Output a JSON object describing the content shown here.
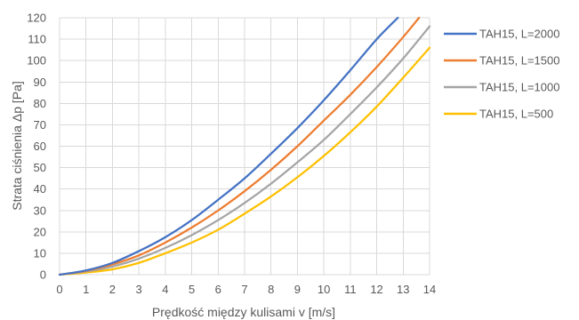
{
  "chart_data": {
    "type": "line",
    "title": "",
    "xlabel": "Prędkość między kulisami v [m/s]",
    "ylabel": "Strata ciśnienia Δp [Pa]",
    "xlim": [
      0,
      14
    ],
    "ylim": [
      0,
      120
    ],
    "x_ticks": [
      "0",
      "1",
      "2",
      "3",
      "4",
      "5",
      "6",
      "7",
      "8",
      "9",
      "10",
      "11",
      "12",
      "13",
      "14"
    ],
    "y_ticks": [
      "0",
      "10",
      "20",
      "30",
      "40",
      "50",
      "60",
      "70",
      "80",
      "90",
      "100",
      "110",
      "120"
    ],
    "grid": true,
    "legend_position": "right",
    "series": [
      {
        "name": "TAH15, L=2000",
        "color": "#4472c4",
        "x": [
          0,
          1,
          2,
          3,
          4,
          5,
          6,
          7,
          8,
          9,
          10,
          11,
          12,
          12.8
        ],
        "y": [
          0,
          2,
          5.5,
          11,
          17.5,
          25.5,
          35,
          45,
          56.5,
          68.5,
          81.5,
          95.5,
          110,
          120
        ]
      },
      {
        "name": "TAH15, L=1500",
        "color": "#ed7d31",
        "x": [
          0,
          1,
          2,
          3,
          4,
          5,
          6,
          7,
          8,
          9,
          10,
          11,
          12,
          13,
          13.6
        ],
        "y": [
          0,
          1.8,
          4.8,
          9,
          15,
          22,
          30,
          39,
          49,
          60,
          72,
          84,
          97,
          111,
          120
        ]
      },
      {
        "name": "TAH15, L=1000",
        "color": "#a5a5a5",
        "x": [
          0,
          1,
          2,
          3,
          4,
          5,
          6,
          7,
          8,
          9,
          10,
          11,
          12,
          13,
          14
        ],
        "y": [
          0,
          1.5,
          3.8,
          7.5,
          12.5,
          18.5,
          25.5,
          33.5,
          42.5,
          52.5,
          63,
          75,
          87.5,
          101,
          116
        ]
      },
      {
        "name": "TAH15, L=500",
        "color": "#ffc000",
        "x": [
          0,
          1,
          2,
          3,
          4,
          5,
          6,
          7,
          8,
          9,
          10,
          11,
          12,
          13,
          14
        ],
        "y": [
          0,
          1,
          2.5,
          5.5,
          10,
          15,
          21,
          28.5,
          36.5,
          45.5,
          55.5,
          66.5,
          78.5,
          92,
          106
        ]
      }
    ]
  }
}
